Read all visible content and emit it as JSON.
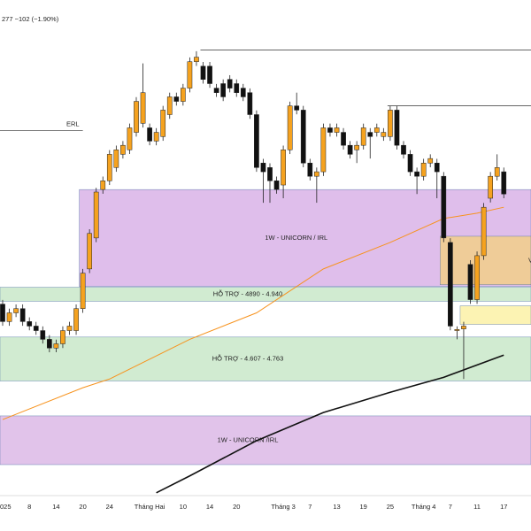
{
  "header": "277 −102 (−1.90%)",
  "chart_data": {
    "type": "candlestick",
    "ylim": [
      4200,
      5960
    ],
    "categories": [
      "025",
      null,
      null,
      null,
      "8",
      null,
      null,
      null,
      "14",
      null,
      null,
      null,
      "20",
      null,
      null,
      null,
      "24",
      null,
      null,
      null,
      null,
      null,
      "Tháng Hai",
      null,
      null,
      null,
      null,
      "10",
      null,
      null,
      null,
      "14",
      null,
      null,
      null,
      "20",
      null,
      null,
      null,
      null,
      null,
      null,
      "Tháng 3",
      null,
      null,
      null,
      "7",
      null,
      null,
      null,
      "13",
      null,
      null,
      null,
      "19",
      null,
      null,
      null,
      "25",
      null,
      null,
      null,
      null,
      "Tháng 4",
      null,
      null,
      null,
      "7",
      null,
      null,
      null,
      "11",
      null,
      null,
      null,
      "17"
    ],
    "open": [
      4880,
      4818,
      4849,
      4864,
      4818,
      4802,
      4786,
      4755,
      4724,
      4739,
      4786,
      4786,
      4864,
      5005,
      5115,
      5287,
      5318,
      5365,
      5412,
      5428,
      5490,
      5522,
      5506,
      5459,
      5475,
      5553,
      5616,
      5600,
      5647,
      5741,
      5725,
      5725,
      5647,
      5663,
      5678,
      5663,
      5647,
      5631,
      5553,
      5381,
      5365,
      5318,
      5303,
      5428,
      5584,
      5569,
      5381,
      5334,
      5350,
      5506,
      5490,
      5490,
      5444,
      5428,
      5444,
      5490,
      5490,
      5475,
      5475,
      5569,
      5444,
      5412,
      5350,
      5334,
      5381,
      5381,
      5334,
      5099,
      4786,
      4792,
      5021,
      4896,
      5052,
      5256,
      5334,
      5350
    ],
    "high": [
      4895,
      4864,
      4879,
      4879,
      4833,
      4817,
      4801,
      4770,
      4754,
      4801,
      4817,
      4879,
      5005,
      5146,
      5293,
      5333,
      5427,
      5443,
      5459,
      5521,
      5615,
      5735,
      5521,
      5505,
      5584,
      5631,
      5631,
      5662,
      5756,
      5778,
      5740,
      5740,
      5662,
      5678,
      5693,
      5678,
      5662,
      5646,
      5568,
      5396,
      5380,
      5333,
      5443,
      5599,
      5631,
      5584,
      5396,
      5365,
      5521,
      5521,
      5521,
      5505,
      5459,
      5459,
      5521,
      5505,
      5521,
      5505,
      5584,
      5584,
      5459,
      5427,
      5365,
      5396,
      5412,
      5396,
      5349,
      5114,
      4801,
      4817,
      5036,
      5067,
      5239,
      5349,
      5412,
      5365
    ],
    "low": [
      4803,
      4803,
      4834,
      4803,
      4787,
      4771,
      4740,
      4709,
      4709,
      4724,
      4771,
      4771,
      4849,
      4990,
      5100,
      5272,
      5303,
      5350,
      5397,
      5413,
      5475,
      5507,
      5444,
      5444,
      5460,
      5538,
      5585,
      5585,
      5632,
      5726,
      5663,
      5648,
      5616,
      5601,
      5632,
      5616,
      5601,
      5538,
      5350,
      5240,
      5240,
      5272,
      5256,
      5413,
      5554,
      5366,
      5319,
      5240,
      5335,
      5475,
      5475,
      5429,
      5397,
      5381,
      5429,
      5397,
      5475,
      5460,
      5460,
      5429,
      5397,
      5335,
      5271,
      5319,
      5366,
      5256,
      5100,
      4787,
      4755,
      4614,
      4881,
      4881,
      5037,
      5241,
      5319,
      5256
    ],
    "close": [
      4818,
      4849,
      4864,
      4818,
      4802,
      4786,
      4755,
      4724,
      4739,
      4786,
      4802,
      4864,
      4990,
      5131,
      5278,
      5318,
      5412,
      5428,
      5444,
      5506,
      5600,
      5631,
      5459,
      5490,
      5569,
      5616,
      5600,
      5647,
      5741,
      5757,
      5678,
      5663,
      5631,
      5616,
      5647,
      5631,
      5616,
      5553,
      5365,
      5350,
      5318,
      5287,
      5428,
      5584,
      5569,
      5381,
      5334,
      5350,
      5506,
      5490,
      5506,
      5444,
      5412,
      5444,
      5506,
      5475,
      5506,
      5490,
      5569,
      5444,
      5412,
      5350,
      5334,
      5381,
      5397,
      5350,
      5115,
      4802,
      4790,
      4802,
      4896,
      5052,
      5224,
      5334,
      5365,
      5271
    ],
    "up_color": "#f5a21f",
    "down_color": "#111111",
    "lines": [
      {
        "color": "#f7931e",
        "x": [
          0,
          12,
          16,
          28,
          38,
          48,
          58,
          66,
          71,
          75
        ],
        "values": [
          4470,
          4583,
          4614,
          4755,
          4849,
          5005,
          5099,
          5184,
          5203,
          5224
        ]
      },
      {
        "color": "#111111",
        "x": [
          23,
          28,
          38,
          48,
          58,
          66,
          75
        ],
        "values": [
          4210,
          4270,
          4395,
          4495,
          4567,
          4620,
          4699
        ]
      }
    ],
    "zones": [
      {
        "label": "1W - UNICORN / IRL",
        "from": 12,
        "top": 5287,
        "bottom": 4943,
        "color": "#d9b3e8"
      },
      {
        "label": "HỖ TRỢ - 4890 - 4.940",
        "from": 0,
        "top": 4940,
        "bottom": 4890,
        "color": "#c9e8c9"
      },
      {
        "label": "HỖ TRỢ - 4.607 - 4.763",
        "from": 0,
        "top": 4763,
        "bottom": 4607,
        "color": "#c9e8c9"
      },
      {
        "label": "1W - UNICORN /IRL",
        "from": 0,
        "top": 4483,
        "bottom": 4310,
        "color": "#dcb8e6"
      },
      {
        "label": "V",
        "from": 66,
        "top": 5121,
        "bottom": 4949,
        "color": "#f2cf8a"
      },
      {
        "from": 69,
        "top": 4874,
        "bottom": 4808,
        "color": "#fbf1a6"
      }
    ],
    "levels": [
      {
        "label": "ERL",
        "value": 5497,
        "from": 0,
        "to": 12
      },
      {
        "value": 5782,
        "from": 30
      },
      {
        "value": 5584,
        "from": 58
      }
    ]
  }
}
